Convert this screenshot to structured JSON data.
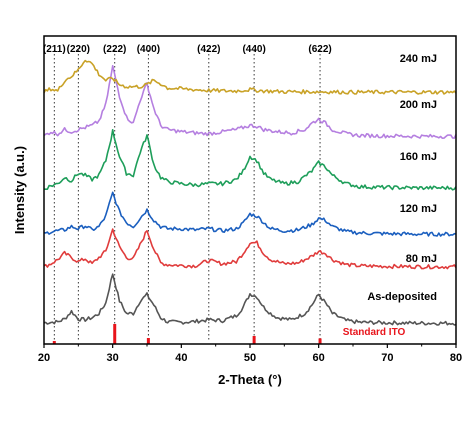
{
  "chart_data": {
    "type": "line",
    "xlabel": "2-Theta (°)",
    "ylabel": "Intensity (a.u.)",
    "xlim": [
      20,
      80
    ],
    "xticks": [
      20,
      30,
      40,
      50,
      60,
      70,
      80
    ],
    "yticks_shown": false,
    "grid": false,
    "peak_labels": [
      {
        "label": "(211)",
        "x": 21.5
      },
      {
        "label": "(220)",
        "x": 25.0
      },
      {
        "label": "(222)",
        "x": 30.3
      },
      {
        "label": "(400)",
        "x": 35.2
      },
      {
        "label": "(422)",
        "x": 44.0
      },
      {
        "label": "(440)",
        "x": 50.6
      },
      {
        "label": "(622)",
        "x": 60.2
      }
    ],
    "reference": {
      "name": "Standard ITO",
      "color": "#e8141b",
      "peaks": [
        {
          "x": 21.5,
          "rel": 0.1
        },
        {
          "x": 30.3,
          "rel": 1.0
        },
        {
          "x": 35.2,
          "rel": 0.3
        },
        {
          "x": 50.6,
          "rel": 0.4
        },
        {
          "x": 60.2,
          "rel": 0.28
        }
      ]
    },
    "series": [
      {
        "name": "As-deposited",
        "color": "#555555",
        "points": [
          [
            20,
            0.03
          ],
          [
            22,
            0.05
          ],
          [
            23,
            0.12
          ],
          [
            24,
            0.3
          ],
          [
            25,
            0.12
          ],
          [
            26,
            0.1
          ],
          [
            27,
            0.15
          ],
          [
            28,
            0.25
          ],
          [
            29,
            0.5
          ],
          [
            30,
            1.2
          ],
          [
            31,
            0.55
          ],
          [
            32,
            0.25
          ],
          [
            33,
            0.25
          ],
          [
            34,
            0.55
          ],
          [
            35,
            0.7
          ],
          [
            36,
            0.45
          ],
          [
            37,
            0.15
          ],
          [
            38,
            0.05
          ],
          [
            40,
            0.04
          ],
          [
            42,
            0.06
          ],
          [
            44,
            0.1
          ],
          [
            46,
            0.08
          ],
          [
            48,
            0.2
          ],
          [
            49,
            0.4
          ],
          [
            50,
            0.72
          ],
          [
            51,
            0.65
          ],
          [
            52,
            0.4
          ],
          [
            53,
            0.25
          ],
          [
            54,
            0.15
          ],
          [
            56,
            0.1
          ],
          [
            58,
            0.25
          ],
          [
            59,
            0.45
          ],
          [
            60,
            0.7
          ],
          [
            61,
            0.5
          ],
          [
            62,
            0.25
          ],
          [
            64,
            0.08
          ],
          [
            66,
            0.04
          ],
          [
            70,
            0.03
          ],
          [
            75,
            0.02
          ],
          [
            80,
            0.02
          ]
        ]
      },
      {
        "name": "80 mJ",
        "color": "#e03c3c",
        "points": [
          [
            20,
            0.03
          ],
          [
            21,
            0.1
          ],
          [
            22,
            0.2
          ],
          [
            23,
            0.35
          ],
          [
            24,
            0.25
          ],
          [
            25,
            0.15
          ],
          [
            26,
            0.22
          ],
          [
            27,
            0.1
          ],
          [
            28,
            0.25
          ],
          [
            29,
            0.4
          ],
          [
            30,
            0.92
          ],
          [
            31,
            0.5
          ],
          [
            32,
            0.25
          ],
          [
            33,
            0.22
          ],
          [
            34,
            0.55
          ],
          [
            35,
            0.9
          ],
          [
            36,
            0.45
          ],
          [
            37,
            0.12
          ],
          [
            38,
            0.08
          ],
          [
            40,
            0.06
          ],
          [
            42,
            0.05
          ],
          [
            44,
            0.18
          ],
          [
            46,
            0.1
          ],
          [
            48,
            0.15
          ],
          [
            49,
            0.35
          ],
          [
            50,
            0.6
          ],
          [
            51,
            0.6
          ],
          [
            52,
            0.35
          ],
          [
            53,
            0.2
          ],
          [
            55,
            0.1
          ],
          [
            57,
            0.12
          ],
          [
            59,
            0.28
          ],
          [
            60,
            0.4
          ],
          [
            61,
            0.35
          ],
          [
            62,
            0.2
          ],
          [
            64,
            0.08
          ],
          [
            66,
            0.05
          ],
          [
            70,
            0.04
          ],
          [
            75,
            0.03
          ],
          [
            80,
            0.03
          ]
        ]
      },
      {
        "name": "120 mJ",
        "color": "#1b5fbf",
        "points": [
          [
            20,
            0.02
          ],
          [
            21,
            0.08
          ],
          [
            22,
            0.1
          ],
          [
            23,
            0.12
          ],
          [
            24,
            0.2
          ],
          [
            25,
            0.15
          ],
          [
            26,
            0.22
          ],
          [
            27,
            0.12
          ],
          [
            28,
            0.2
          ],
          [
            29,
            0.45
          ],
          [
            30,
            1.0
          ],
          [
            31,
            0.55
          ],
          [
            32,
            0.3
          ],
          [
            33,
            0.2
          ],
          [
            34,
            0.4
          ],
          [
            35,
            0.6
          ],
          [
            36,
            0.35
          ],
          [
            37,
            0.2
          ],
          [
            38,
            0.15
          ],
          [
            40,
            0.15
          ],
          [
            42,
            0.12
          ],
          [
            44,
            0.15
          ],
          [
            46,
            0.1
          ],
          [
            48,
            0.15
          ],
          [
            49,
            0.28
          ],
          [
            50,
            0.5
          ],
          [
            51,
            0.45
          ],
          [
            52,
            0.3
          ],
          [
            53,
            0.15
          ],
          [
            55,
            0.1
          ],
          [
            57,
            0.12
          ],
          [
            59,
            0.25
          ],
          [
            60,
            0.4
          ],
          [
            61,
            0.35
          ],
          [
            62,
            0.2
          ],
          [
            64,
            0.08
          ],
          [
            66,
            0.05
          ],
          [
            70,
            0.03
          ],
          [
            75,
            0.02
          ],
          [
            80,
            0.02
          ]
        ]
      },
      {
        "name": "160 mJ",
        "color": "#1e9e5a",
        "points": [
          [
            20,
            0.02
          ],
          [
            21,
            0.1
          ],
          [
            22,
            0.15
          ],
          [
            23,
            0.3
          ],
          [
            24,
            0.22
          ],
          [
            25,
            0.4
          ],
          [
            26,
            0.35
          ],
          [
            27,
            0.25
          ],
          [
            28,
            0.35
          ],
          [
            29,
            0.7
          ],
          [
            30,
            1.4
          ],
          [
            31,
            0.8
          ],
          [
            32,
            0.4
          ],
          [
            33,
            0.35
          ],
          [
            34,
            0.9
          ],
          [
            35,
            1.3
          ],
          [
            36,
            0.6
          ],
          [
            37,
            0.3
          ],
          [
            38,
            0.2
          ],
          [
            40,
            0.15
          ],
          [
            42,
            0.12
          ],
          [
            44,
            0.15
          ],
          [
            46,
            0.15
          ],
          [
            48,
            0.25
          ],
          [
            49,
            0.45
          ],
          [
            50,
            0.8
          ],
          [
            51,
            0.7
          ],
          [
            52,
            0.4
          ],
          [
            53,
            0.25
          ],
          [
            55,
            0.15
          ],
          [
            57,
            0.2
          ],
          [
            59,
            0.45
          ],
          [
            60,
            0.65
          ],
          [
            61,
            0.55
          ],
          [
            62,
            0.35
          ],
          [
            64,
            0.15
          ],
          [
            66,
            0.08
          ],
          [
            70,
            0.06
          ],
          [
            75,
            0.05
          ],
          [
            80,
            0.05
          ]
        ]
      },
      {
        "name": "200 mJ",
        "color": "#b57fe0",
        "points": [
          [
            20,
            0.05
          ],
          [
            21,
            0.15
          ],
          [
            22,
            0.1
          ],
          [
            23,
            0.2
          ],
          [
            24,
            0.15
          ],
          [
            25,
            0.2
          ],
          [
            26,
            0.25
          ],
          [
            27,
            0.3
          ],
          [
            28,
            0.4
          ],
          [
            29,
            0.8
          ],
          [
            30,
            1.7
          ],
          [
            31,
            1.0
          ],
          [
            32,
            0.5
          ],
          [
            33,
            0.35
          ],
          [
            34,
            0.9
          ],
          [
            35,
            1.3
          ],
          [
            36,
            0.7
          ],
          [
            37,
            0.3
          ],
          [
            38,
            0.2
          ],
          [
            40,
            0.15
          ],
          [
            42,
            0.12
          ],
          [
            44,
            0.1
          ],
          [
            46,
            0.15
          ],
          [
            48,
            0.2
          ],
          [
            50,
            0.3
          ],
          [
            51,
            0.28
          ],
          [
            52,
            0.2
          ],
          [
            54,
            0.15
          ],
          [
            56,
            0.12
          ],
          [
            58,
            0.2
          ],
          [
            59,
            0.35
          ],
          [
            60,
            0.45
          ],
          [
            61,
            0.35
          ],
          [
            62,
            0.2
          ],
          [
            64,
            0.1
          ],
          [
            66,
            0.06
          ],
          [
            70,
            0.05
          ],
          [
            75,
            0.04
          ],
          [
            80,
            0.04
          ]
        ]
      },
      {
        "name": "240 mJ",
        "color": "#c9a227",
        "points": [
          [
            20,
            0.02
          ],
          [
            21,
            0.1
          ],
          [
            22,
            0.05
          ],
          [
            23,
            0.3
          ],
          [
            24,
            0.4
          ],
          [
            25,
            0.55
          ],
          [
            26,
            0.8
          ],
          [
            27,
            0.7
          ],
          [
            28,
            0.45
          ],
          [
            29,
            0.3
          ],
          [
            30,
            0.35
          ],
          [
            31,
            0.2
          ],
          [
            32,
            0.15
          ],
          [
            34,
            0.15
          ],
          [
            35,
            0.2
          ],
          [
            36,
            0.3
          ],
          [
            37,
            0.22
          ],
          [
            38,
            0.12
          ],
          [
            40,
            0.1
          ],
          [
            42,
            0.08
          ],
          [
            44,
            0.06
          ],
          [
            46,
            0.05
          ],
          [
            48,
            0.05
          ],
          [
            50,
            0.08
          ],
          [
            52,
            0.05
          ],
          [
            55,
            0.03
          ],
          [
            60,
            0.03
          ],
          [
            65,
            0.02
          ],
          [
            70,
            0.02
          ],
          [
            75,
            0.02
          ],
          [
            80,
            0.02
          ]
        ]
      }
    ]
  }
}
